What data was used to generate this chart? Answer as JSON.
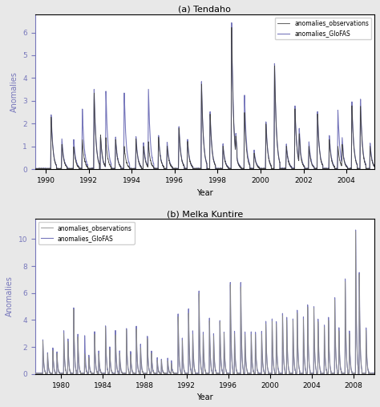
{
  "subplot1": {
    "title": "(a) Tendaho",
    "xlabel": "Year",
    "ylabel": "Anomalies",
    "xmin": 1989.5,
    "xmax": 2005.3,
    "ymin": 0,
    "ymax": 6.8,
    "yticks": [
      0,
      1,
      2,
      3,
      4,
      5,
      6
    ],
    "xticks": [
      1990,
      1992,
      1994,
      1996,
      1998,
      2000,
      2002,
      2004
    ],
    "obs_color": "#444444",
    "glofas_color": "#7777bb",
    "obs_label": "anomalies_observations",
    "glofas_label": "anomalies_GloFAS",
    "legend_loc": "upper right"
  },
  "subplot2": {
    "title": "(b) Melka Kuntire",
    "xlabel": "Year",
    "ylabel": "Anomalies",
    "xmin": 1977.5,
    "xmax": 2010.0,
    "ymin": 0,
    "ymax": 11.5,
    "yticks": [
      0,
      2,
      4,
      6,
      8,
      10
    ],
    "xticks": [
      1980,
      1984,
      1988,
      1992,
      1996,
      2000,
      2004,
      2008
    ],
    "obs_color": "#888888",
    "glofas_color": "#7777bb",
    "obs_label": "anomalies_observations",
    "glofas_label": "anomalies_GloFAS",
    "legend_loc": "upper left"
  },
  "fig_bg": "#e8e8e8",
  "ax_bg": "#ffffff"
}
